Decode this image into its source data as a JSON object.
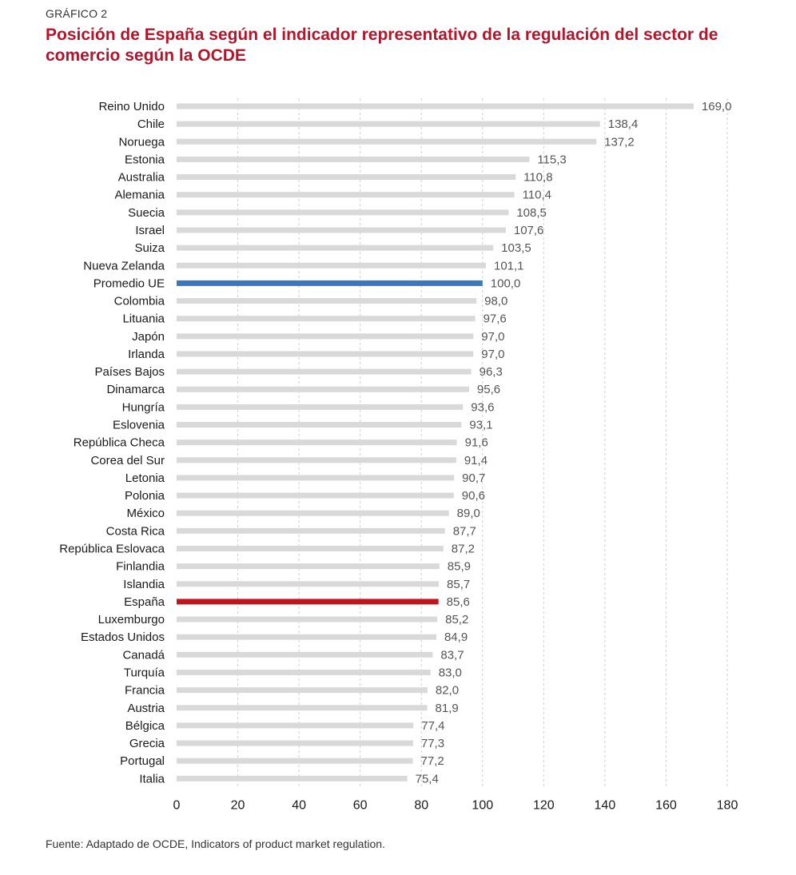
{
  "header": {
    "kicker": "GRÁFICO 2",
    "title": "Posición de España según el indicador representativo de la regulación del sector de comercio según la OCDE"
  },
  "source": "Fuente: Adaptado de OCDE, Indicators of product market regulation.",
  "colors": {
    "title": "#b5152b",
    "bar_default": "#d9d9d9",
    "bar_eu_average": "#3a78be",
    "bar_spain": "#c0141f",
    "gridline": "#d0d0d0",
    "value_label": "#555555",
    "category_label": "#1a1a1a"
  },
  "chart_data": {
    "type": "bar",
    "orientation": "horizontal",
    "title": "Posición de España según el indicador representativo de la regulación del sector de comercio según la OCDE",
    "xlabel": "",
    "ylabel": "",
    "xlim": [
      0,
      180
    ],
    "xticks": [
      0,
      20,
      40,
      60,
      80,
      100,
      120,
      140,
      160,
      180
    ],
    "grid": "vertical dashed",
    "highlights": {
      "Promedio UE": "eu_average",
      "España": "spain"
    },
    "categories": [
      "Reino Unido",
      "Chile",
      "Noruega",
      "Estonia",
      "Australia",
      "Alemania",
      "Suecia",
      "Israel",
      "Suiza",
      "Nueva Zelanda",
      "Promedio UE",
      "Colombia",
      "Lituania",
      "Japón",
      "Irlanda",
      "Países Bajos",
      "Dinamarca",
      "Hungría",
      "Eslovenia",
      "República Checa",
      "Corea del Sur",
      "Letonia",
      "Polonia",
      "México",
      "Costa Rica",
      "República Eslovaca",
      "Finlandia",
      "Islandia",
      "España",
      "Luxemburgo",
      "Estados Unidos",
      "Canadá",
      "Turquía",
      "Francia",
      "Austria",
      "Bélgica",
      "Grecia",
      "Portugal",
      "Italia"
    ],
    "values": [
      169.0,
      138.4,
      137.2,
      115.3,
      110.8,
      110.4,
      108.5,
      107.6,
      103.5,
      101.1,
      100.0,
      98.0,
      97.6,
      97.0,
      97.0,
      96.3,
      95.6,
      93.6,
      93.1,
      91.6,
      91.4,
      90.7,
      90.6,
      89.0,
      87.7,
      87.2,
      85.9,
      85.7,
      85.6,
      85.2,
      84.9,
      83.7,
      83.0,
      82.0,
      81.9,
      77.4,
      77.3,
      77.2,
      75.4
    ],
    "value_labels": [
      "169,0",
      "138,4",
      "137,2",
      "115,3",
      "110,8",
      "110,4",
      "108,5",
      "107,6",
      "103,5",
      "101,1",
      "100,0",
      "98,0",
      "97,6",
      "97,0",
      "97,0",
      "96,3",
      "95,6",
      "93,6",
      "93,1",
      "91,6",
      "91,4",
      "90,7",
      "90,6",
      "89,0",
      "87,7",
      "87,2",
      "85,9",
      "85,7",
      "85,6",
      "85,2",
      "84,9",
      "83,7",
      "83,0",
      "82,0",
      "81,9",
      "77,4",
      "77,3",
      "77,2",
      "75,4"
    ]
  }
}
